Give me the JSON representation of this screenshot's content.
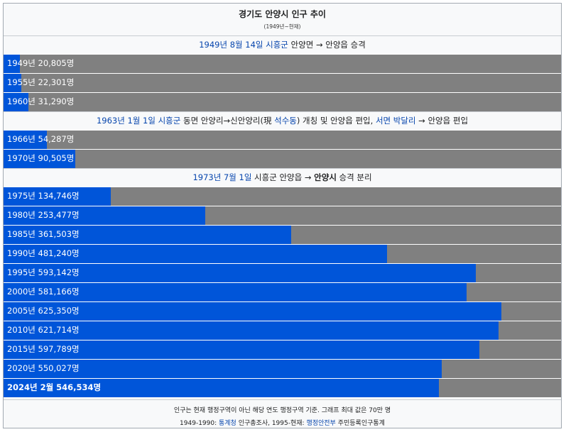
{
  "header": {
    "title": "경기도 안양시 인구 추이",
    "subtitle": "(1949년~현재)"
  },
  "sections": [
    {
      "parts": [
        {
          "text": "1949년 8월 14일",
          "link": true
        },
        {
          "text": " ",
          "link": false
        },
        {
          "text": "시흥군",
          "link": true
        },
        {
          "text": " 안양면 → 안양읍 승격",
          "link": false
        }
      ]
    },
    {
      "parts": [
        {
          "text": "1963년 1월 1일",
          "link": true
        },
        {
          "text": " ",
          "link": false
        },
        {
          "text": "시흥군",
          "link": true
        },
        {
          "text": " 동면 안양리→신안양리(現 ",
          "link": false
        },
        {
          "text": "석수동",
          "link": true
        },
        {
          "text": ") 개칭 및 안양읍 편입, ",
          "link": false
        },
        {
          "text": "서면 박달리",
          "link": true
        },
        {
          "text": " → 안양읍 편입",
          "link": false
        }
      ]
    },
    {
      "parts": [
        {
          "text": "1973년 7월 1일",
          "link": true
        },
        {
          "text": " 시흥군 안양읍 → ",
          "link": false
        },
        {
          "text": "안양시",
          "bold": true
        },
        {
          "text": " 승격 분리",
          "link": false
        }
      ]
    }
  ],
  "chart_data": {
    "type": "bar",
    "orientation": "horizontal",
    "title": "경기도 안양시 인구 추이",
    "subtitle": "(1949년~현재)",
    "xlim": [
      0,
      700000
    ],
    "categories": [
      "1949년",
      "1955년",
      "1960년",
      "1966년",
      "1970년",
      "1975년",
      "1980년",
      "1985년",
      "1990년",
      "1995년",
      "2000년",
      "2005년",
      "2010년",
      "2015년",
      "2020년",
      "2024년 2월"
    ],
    "values": [
      20805,
      22301,
      31290,
      54287,
      90505,
      134746,
      253477,
      361503,
      481240,
      593142,
      581166,
      625350,
      621714,
      597789,
      550027,
      546534
    ],
    "labels": [
      "1949년 20,805명",
      "1955년 22,301명",
      "1960년 31,290명",
      "1966년 54,287명",
      "1970년 90,505명",
      "1975년 134,746명",
      "1980년 253,477명",
      "1985년 361,503명",
      "1990년 481,240명",
      "1995년 593,142명",
      "2000년 581,166명",
      "2005년 625,350명",
      "2010년 621,714명",
      "2015년 597,789명",
      "2020년 550,027명",
      "2024년 2월 546,534명"
    ],
    "bar_color": "#0055d9",
    "track_color": "#808080"
  },
  "footer": {
    "note": "인구는 현재 행정구역이 아닌 해당 연도 행정구역 기준. 그래프 최대 값은 70만 명",
    "source_parts": [
      {
        "text": "1949-1990: ",
        "link": false
      },
      {
        "text": "통계청",
        "link": true
      },
      {
        "text": " 인구총조사, 1995-현재: ",
        "link": false
      },
      {
        "text": "행정안전부",
        "link": true
      },
      {
        "text": " 주민등록인구통계",
        "link": false
      }
    ]
  }
}
